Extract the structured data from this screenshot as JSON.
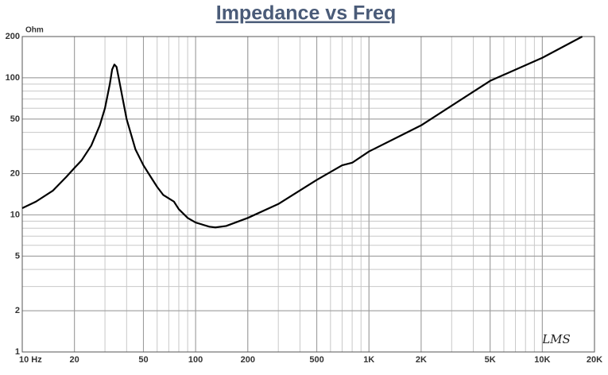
{
  "chart_data": {
    "type": "line",
    "title": "Impedance vs Freq",
    "y_label": "Ohm",
    "logo": "LMS",
    "log_x": true,
    "log_y": true,
    "grid": true,
    "xlim": [
      10,
      20000
    ],
    "ylim": [
      1,
      200
    ],
    "xticks": [
      {
        "value": 10,
        "label": "10 Hz"
      },
      20,
      50,
      100,
      200,
      500,
      {
        "value": 1000,
        "label": "1K"
      },
      {
        "value": 2000,
        "label": "2K"
      },
      {
        "value": 5000,
        "label": "5K"
      },
      {
        "value": 10000,
        "label": "10K"
      },
      {
        "value": 20000,
        "label": "20K"
      }
    ],
    "yticks": [
      1,
      2,
      5,
      10,
      20,
      50,
      100,
      200
    ],
    "x": [
      10,
      12,
      15,
      18,
      20,
      22,
      25,
      28,
      30,
      32,
      33,
      34,
      35,
      36,
      38,
      40,
      45,
      50,
      55,
      60,
      65,
      70,
      75,
      80,
      90,
      100,
      120,
      130,
      150,
      200,
      300,
      500,
      700,
      800,
      1000,
      2000,
      5000,
      10000,
      17000
    ],
    "series": [
      {
        "name": "Impedance",
        "color": "#000000",
        "values": [
          11.2,
          12.5,
          15,
          19,
          22,
          25,
          32,
          45,
          60,
          90,
          115,
          125,
          120,
          100,
          70,
          50,
          30,
          23,
          19,
          16,
          14,
          13.2,
          12.5,
          11,
          9.5,
          8.8,
          8.2,
          8.1,
          8.3,
          9.5,
          12,
          18,
          23,
          24,
          29,
          45,
          95,
          140,
          200
        ]
      }
    ]
  }
}
